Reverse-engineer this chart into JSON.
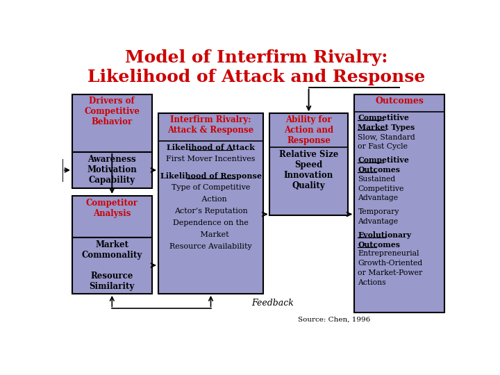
{
  "title_line1": "Model of Interfirm Rivalry:",
  "title_line2": "Likelihood of Attack and Response",
  "title_color": "#cc0000",
  "title_fontsize": 18,
  "bg_color": "#ffffff",
  "box_fill": "#9999cc",
  "box_edge": "#000000",
  "red_text": "#cc0000",
  "black_text": "#000000",
  "feedback_text": "Feedback",
  "source_text": "Source: Chen, 1996",
  "box3_content": [
    [
      "Likelihood of Attack",
      true,
      true
    ],
    [
      "First Mover Incentives",
      false,
      false
    ],
    [
      "",
      false,
      false
    ],
    [
      "Likelihood of Response",
      true,
      true
    ],
    [
      "Type of Competitive",
      false,
      false
    ],
    [
      "   Action",
      false,
      false
    ],
    [
      "Actor’s Reputation",
      false,
      false
    ],
    [
      "Dependence on the",
      false,
      false
    ],
    [
      "   Market",
      false,
      false
    ],
    [
      "Resource Availability",
      false,
      false
    ]
  ],
  "box5_content": [
    [
      "Competitive",
      true,
      true
    ],
    [
      "Market Types",
      true,
      true
    ],
    [
      "Slow, Standard",
      false,
      false
    ],
    [
      "or Fast Cycle",
      false,
      false
    ],
    [
      "",
      false,
      false
    ],
    [
      "Competitive",
      true,
      true
    ],
    [
      "Outcomes",
      true,
      true
    ],
    [
      "Sustained",
      false,
      false
    ],
    [
      "Competitive",
      false,
      false
    ],
    [
      "Advantage",
      false,
      false
    ],
    [
      "",
      false,
      false
    ],
    [
      "Temporary",
      false,
      false
    ],
    [
      "Advantage",
      false,
      false
    ],
    [
      "",
      false,
      false
    ],
    [
      "Evolutionary",
      true,
      true
    ],
    [
      "Outcomes",
      true,
      true
    ],
    [
      "Entrepreneurial",
      false,
      false
    ],
    [
      "Growth-Oriented",
      false,
      false
    ],
    [
      "or Market-Power",
      false,
      false
    ],
    [
      "Actions",
      false,
      false
    ]
  ]
}
